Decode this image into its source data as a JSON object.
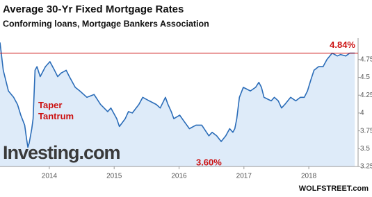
{
  "chart_data": {
    "type": "line",
    "title": "Average 30-Yr Fixed Mortgage Rates",
    "subtitle": "Conforming loans, Mortgage Bankers Association",
    "watermark": "Investing.com",
    "source": "WOLFSTREET.com",
    "color": "#2a6cb8",
    "area_color": "#deebf9",
    "x": [
      2013.24,
      2013.29,
      2013.37,
      2013.45,
      2013.51,
      2013.56,
      2013.62,
      2013.65,
      2013.67,
      2013.69,
      2013.73,
      2013.75,
      2013.78,
      2013.81,
      2013.86,
      2013.94,
      2014.01,
      2014.08,
      2014.13,
      2014.18,
      2014.26,
      2014.31,
      2014.4,
      2014.47,
      2014.58,
      2014.69,
      2014.79,
      2014.9,
      2014.95,
      2015.04,
      2015.08,
      2015.17,
      2015.22,
      2015.28,
      2015.38,
      2015.44,
      2015.54,
      2015.65,
      2015.71,
      2015.79,
      2015.83,
      2015.88,
      2015.92,
      2016.01,
      2016.08,
      2016.16,
      2016.26,
      2016.35,
      2016.46,
      2016.51,
      2016.58,
      2016.65,
      2016.72,
      2016.78,
      2016.83,
      2016.86,
      2016.89,
      2016.93,
      2016.99,
      2017.1,
      2017.18,
      2017.23,
      2017.27,
      2017.31,
      2017.42,
      2017.47,
      2017.53,
      2017.58,
      2017.63,
      2017.72,
      2017.8,
      2017.87,
      2017.93,
      2017.98,
      2018.03,
      2018.08,
      2018.15,
      2018.22,
      2018.28,
      2018.36,
      2018.44,
      2018.49,
      2018.57,
      2018.63,
      2018.71
    ],
    "values": [
      4.99,
      4.6,
      4.31,
      4.22,
      4.12,
      3.97,
      3.83,
      3.63,
      3.52,
      3.58,
      3.78,
      3.92,
      4.6,
      4.65,
      4.51,
      4.65,
      4.72,
      4.6,
      4.51,
      4.56,
      4.6,
      4.51,
      4.36,
      4.31,
      4.22,
      4.26,
      4.12,
      4.02,
      4.07,
      3.92,
      3.81,
      3.92,
      4.02,
      4.0,
      4.12,
      4.22,
      4.17,
      4.12,
      4.07,
      4.22,
      4.12,
      4.02,
      3.92,
      3.97,
      3.88,
      3.78,
      3.83,
      3.83,
      3.68,
      3.73,
      3.68,
      3.6,
      3.68,
      3.78,
      3.73,
      3.78,
      3.92,
      4.22,
      4.36,
      4.31,
      4.36,
      4.43,
      4.36,
      4.22,
      4.17,
      4.22,
      4.17,
      4.07,
      4.12,
      4.22,
      4.17,
      4.22,
      4.22,
      4.31,
      4.46,
      4.6,
      4.65,
      4.65,
      4.75,
      4.84,
      4.8,
      4.82,
      4.8,
      4.84,
      4.84
    ],
    "xlim": [
      2013.24,
      2018.76
    ],
    "xticks": [
      2014,
      2015,
      2016,
      2017,
      2018
    ],
    "ylim": [
      3.25,
      5.05
    ],
    "yticks": [
      3.25,
      3.5,
      3.75,
      4,
      4.25,
      4.5,
      4.75
    ],
    "hline": {
      "value": 4.84,
      "label": "4.84%",
      "color": "#cc1111"
    },
    "annotations": [
      {
        "text": [
          "Taper",
          "Tantrum"
        ],
        "x": 2013.83,
        "y": 4.1
      },
      {
        "text": [
          "3.60%"
        ],
        "x": 2016.46,
        "y": 3.3
      }
    ]
  }
}
